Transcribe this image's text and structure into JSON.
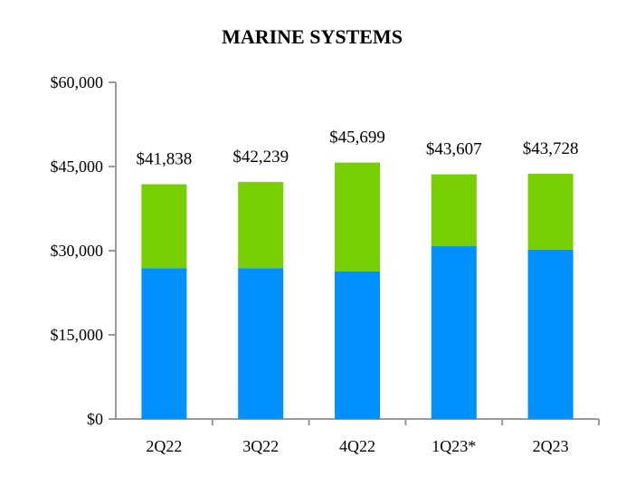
{
  "chart_data": {
    "type": "bar",
    "stacked": true,
    "title": "MARINE SYSTEMS",
    "categories": [
      "2Q22",
      "3Q22",
      "4Q22",
      "1Q23*",
      "2Q23"
    ],
    "series": [
      {
        "values": [
          26900,
          26900,
          26300,
          30800,
          30200
        ],
        "color": "#0091FF"
      },
      {
        "values": [
          14938,
          15339,
          19399,
          12807,
          13528
        ],
        "color": "#77CE00"
      }
    ],
    "totals": [
      41838,
      42239,
      45699,
      43607,
      43728
    ],
    "data_labels": [
      "$41,838",
      "$42,239",
      "$45,699",
      "$43,607",
      "$43,728"
    ],
    "ylim": [
      0,
      60000
    ],
    "yticks": [
      0,
      15000,
      30000,
      45000,
      60000
    ],
    "ytick_labels": [
      "$0",
      "$15,000",
      "$30,000",
      "$45,000",
      "$60,000"
    ],
    "grid": false,
    "xlabel": "",
    "ylabel": ""
  }
}
